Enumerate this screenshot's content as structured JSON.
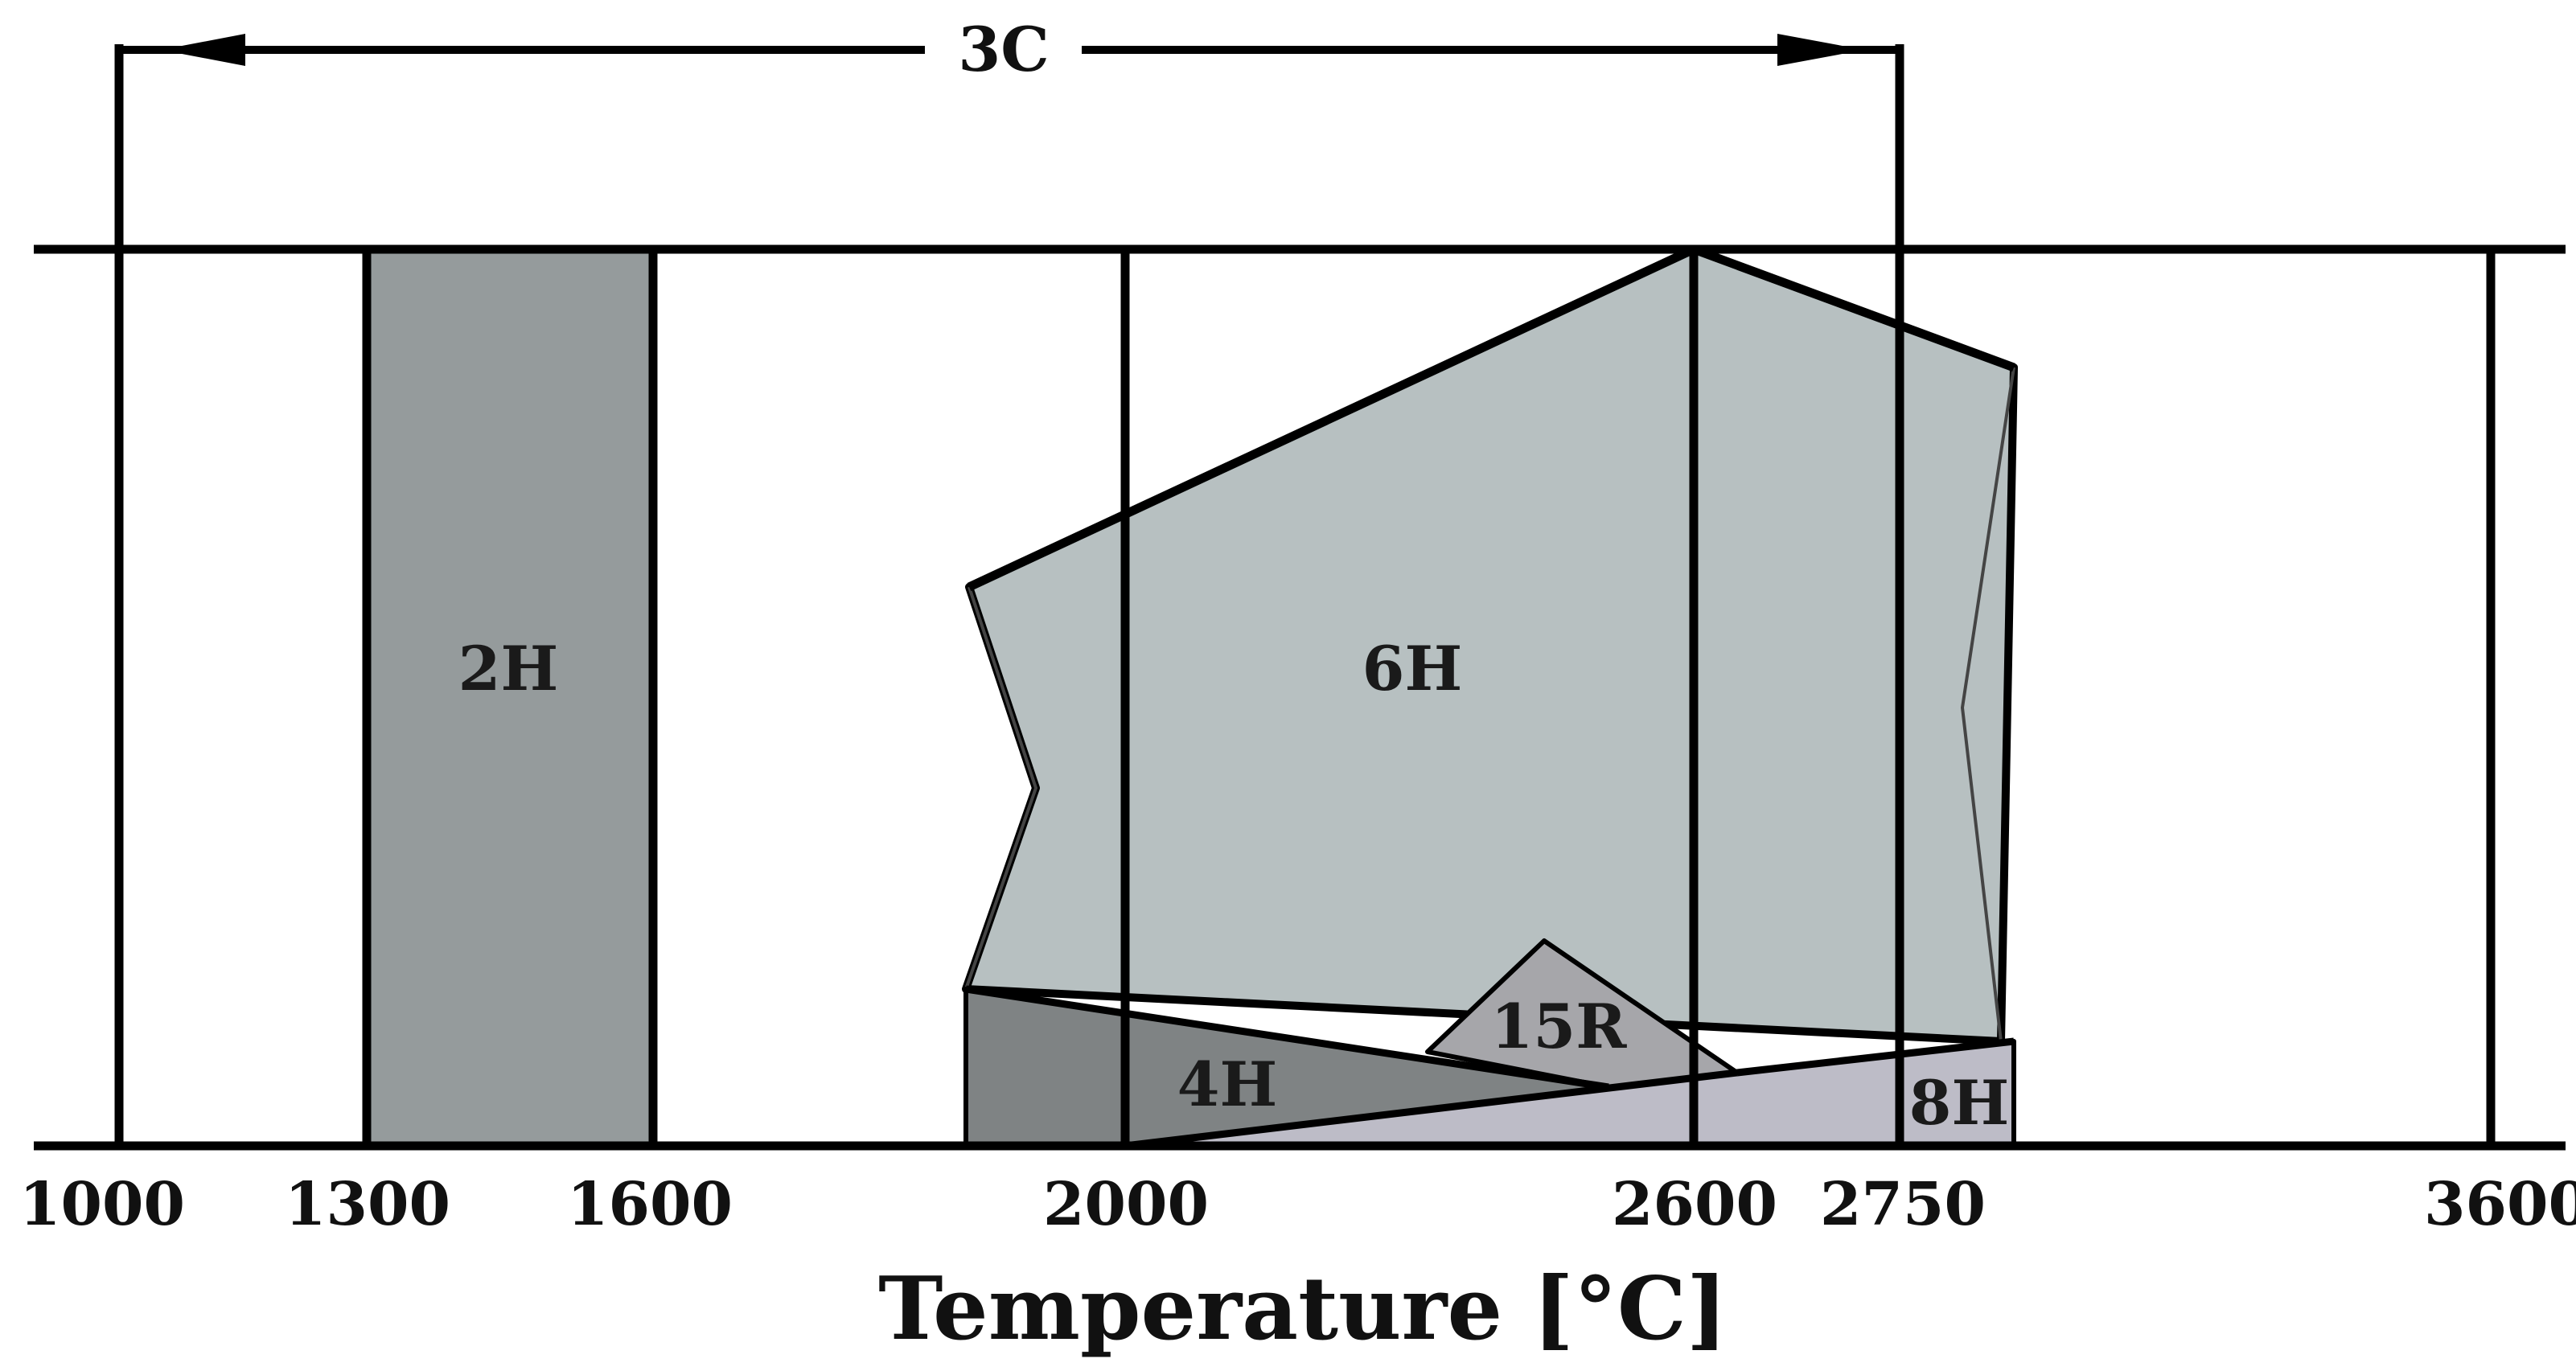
{
  "axis": {
    "title": "Temperature [°C]",
    "ticks": [
      "1000",
      "1300",
      "1600",
      "2000",
      "2600",
      "2750",
      "3600"
    ]
  },
  "range_arrow": {
    "label": "3C"
  },
  "regions": {
    "r2H": {
      "label": "2H",
      "color": "#959b9c"
    },
    "r6H": {
      "label": "6H",
      "color": "#b7c0c1"
    },
    "r4H": {
      "label": "4H",
      "color": "#7f8384"
    },
    "r15R": {
      "label": "15R",
      "color": "#a6a6aa"
    },
    "r8H": {
      "label": "8H",
      "color": "#bdbcc7"
    }
  }
}
